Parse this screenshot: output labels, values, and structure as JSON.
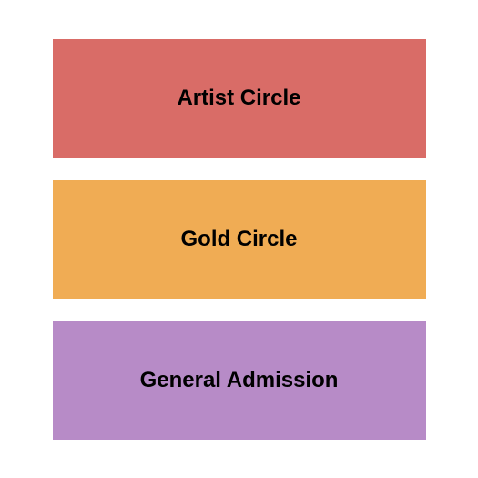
{
  "sections": [
    {
      "label": "Artist Circle",
      "background_color": "#d96c67",
      "font_size": 24,
      "font_weight": "bold",
      "text_color": "#000000"
    },
    {
      "label": "Gold Circle",
      "background_color": "#f0ac54",
      "font_size": 24,
      "font_weight": "bold",
      "text_color": "#000000"
    },
    {
      "label": "General Admission",
      "background_color": "#b78bc7",
      "font_size": 24,
      "font_weight": "bold",
      "text_color": "#000000"
    }
  ],
  "layout": {
    "container_width": 525,
    "container_height": 525,
    "section_width": 410,
    "section_height": 130,
    "gap": 25,
    "background_color": "#ffffff"
  }
}
